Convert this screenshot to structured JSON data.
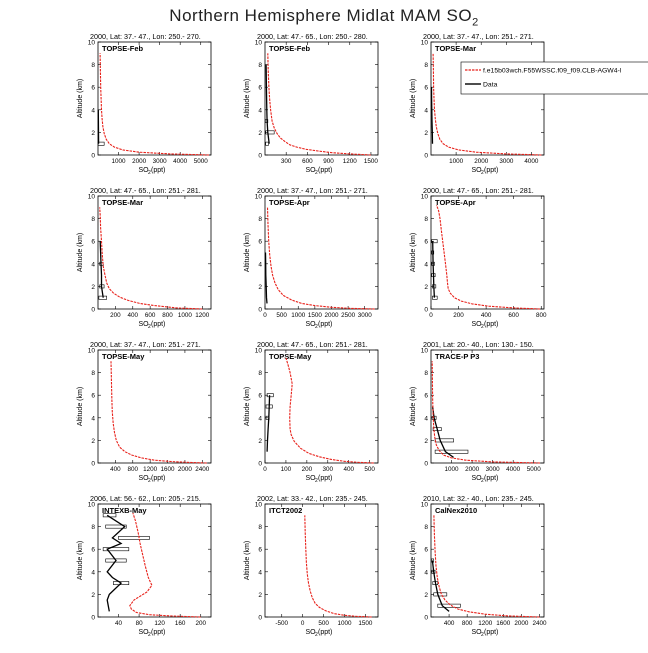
{
  "figure": {
    "title": "Northern Hemisphere Midlat MAM SO",
    "title_sub": "2",
    "ylabel": "Altitude (km)",
    "xlabel_main": "SO",
    "xlabel_sub": "2",
    "xlabel_unit": " (ppt)"
  },
  "legend": {
    "model_label": "f.e15b03wch.F55WSSC.f09_f09.CLB-AGW4-l",
    "obs_label": "Data",
    "model_color": "#e8221b",
    "obs_color": "#000000"
  },
  "chart_data": [
    {
      "type": "line",
      "header": "2000, Lat: 37.- 47., Lon: 250.- 270.",
      "campaign": "TOPSE-Feb",
      "xlim": [
        0,
        5500
      ],
      "ylim": [
        0,
        10
      ],
      "xticks": [
        1000,
        2000,
        3000,
        4000,
        5000
      ],
      "yticks": [
        0,
        2,
        4,
        6,
        8,
        10
      ],
      "model": {
        "x": [
          5400,
          3500,
          2000,
          1200,
          800,
          550,
          400,
          300,
          240,
          200,
          170,
          150,
          130,
          120,
          110,
          100
        ],
        "y": [
          0,
          0.1,
          0.25,
          0.45,
          0.7,
          1,
          1.4,
          1.9,
          2.5,
          3.2,
          4,
          5,
          6,
          7,
          8,
          9
        ]
      },
      "obs": {
        "x": [
          30,
          25,
          20,
          15
        ],
        "y": [
          1,
          2,
          3,
          4
        ]
      },
      "boxes": [
        {
          "y": 1,
          "lo": 10,
          "hi": 300
        }
      ]
    },
    {
      "type": "line",
      "header": "2000, Lat: 47.- 65., Lon: 250.- 280.",
      "campaign": "TOPSE-Feb",
      "xlim": [
        0,
        1600
      ],
      "ylim": [
        0,
        10
      ],
      "xticks": [
        300,
        600,
        900,
        1200,
        1500
      ],
      "yticks": [
        0,
        2,
        4,
        6,
        8,
        10
      ],
      "model": {
        "x": [
          1500,
          1200,
          950,
          750,
          580,
          450,
          350,
          280,
          220,
          170,
          130,
          100,
          80,
          65,
          55,
          45,
          40
        ],
        "y": [
          0,
          0.1,
          0.2,
          0.35,
          0.5,
          0.7,
          0.9,
          1.2,
          1.5,
          1.9,
          2.4,
          3,
          4,
          5,
          6,
          7.5,
          9
        ]
      },
      "obs": {
        "x": [
          60,
          40,
          30,
          25,
          20,
          15
        ],
        "y": [
          1,
          2,
          3,
          4,
          6,
          8
        ]
      },
      "boxes": [
        {
          "y": 1,
          "lo": 10,
          "hi": 50
        },
        {
          "y": 2,
          "lo": 10,
          "hi": 130
        },
        {
          "y": 3,
          "lo": 5,
          "hi": 40
        }
      ]
    },
    {
      "type": "line",
      "header": "2000, Lat: 37.- 47., Lon: 251.- 271.",
      "campaign": "TOPSE-Mar",
      "xlim": [
        0,
        4500
      ],
      "ylim": [
        0,
        10
      ],
      "xticks": [
        1000,
        2000,
        3000,
        4000
      ],
      "yticks": [
        0,
        2,
        4,
        6,
        8,
        10
      ],
      "model": {
        "x": [
          4400,
          3000,
          1800,
          1100,
          700,
          480,
          350,
          270,
          210,
          170,
          140,
          120,
          105,
          95,
          85
        ],
        "y": [
          0,
          0.1,
          0.25,
          0.45,
          0.7,
          1,
          1.4,
          1.9,
          2.5,
          3.2,
          4,
          5,
          6,
          7.5,
          9
        ]
      },
      "obs": {
        "x": [
          60,
          50,
          40,
          30,
          25,
          20
        ],
        "y": [
          1,
          2,
          3,
          4,
          5,
          6
        ]
      },
      "boxes": []
    },
    {
      "type": "line",
      "header": "2000, Lat: 47.- 65., Lon: 251.- 281.",
      "campaign": "TOPSE-Mar",
      "xlim": [
        0,
        1300
      ],
      "ylim": [
        0,
        10
      ],
      "xticks": [
        200,
        400,
        600,
        800,
        1000,
        1200
      ],
      "yticks": [
        0,
        2,
        4,
        6,
        8,
        10
      ],
      "model": {
        "x": [
          1200,
          900,
          650,
          480,
          350,
          250,
          180,
          130,
          100,
          80,
          60,
          50,
          40,
          30,
          25,
          20
        ],
        "y": [
          0,
          0.1,
          0.3,
          0.5,
          0.75,
          1.05,
          1.4,
          1.8,
          2.3,
          3,
          3.8,
          4.8,
          6,
          7.2,
          8.3,
          9
        ]
      },
      "obs": {
        "x": [
          60,
          40,
          40,
          35,
          30,
          25
        ],
        "y": [
          1,
          2,
          3,
          4,
          5,
          6
        ]
      },
      "boxes": [
        {
          "y": 1,
          "lo": 10,
          "hi": 100
        },
        {
          "y": 2,
          "lo": 20,
          "hi": 70
        },
        {
          "y": 4,
          "lo": 20,
          "hi": 60
        }
      ]
    },
    {
      "type": "line",
      "header": "2000, Lat: 37.- 47., Lon: 251.- 271.",
      "campaign": "TOPSE-Apr",
      "xlim": [
        0,
        3400
      ],
      "ylim": [
        0,
        10
      ],
      "xticks": [
        0,
        500,
        1000,
        1500,
        2000,
        2500,
        3000
      ],
      "yticks": [
        0,
        2,
        4,
        6,
        8,
        10
      ],
      "model": {
        "x": [
          3300,
          2600,
          2000,
          1500,
          1100,
          800,
          550,
          400,
          300,
          230,
          180,
          140,
          110,
          90,
          75
        ],
        "y": [
          0,
          0.05,
          0.15,
          0.3,
          0.5,
          0.8,
          1.2,
          1.7,
          2.3,
          3,
          3.8,
          4.8,
          6,
          7.5,
          9
        ]
      },
      "obs": {
        "x": [
          60,
          45,
          35,
          25,
          20,
          15
        ],
        "y": [
          0.5,
          1,
          2,
          3,
          4,
          5
        ]
      },
      "boxes": []
    },
    {
      "type": "line",
      "header": "2000, Lat: 47.- 65., Lon: 251.- 281.",
      "campaign": "TOPSE-Apr",
      "xlim": [
        0,
        820
      ],
      "ylim": [
        0,
        10
      ],
      "xticks": [
        0,
        200,
        400,
        600,
        800
      ],
      "yticks": [
        0,
        2,
        4,
        6,
        8,
        10
      ],
      "model": {
        "x": [
          790,
          600,
          420,
          300,
          220,
          170,
          140,
          125,
          120,
          115,
          105,
          95,
          85,
          75,
          65,
          55,
          40
        ],
        "y": [
          0,
          0.1,
          0.25,
          0.45,
          0.7,
          1,
          1.4,
          1.8,
          2.3,
          3,
          4,
          5,
          6,
          7,
          8,
          8.7,
          9.2
        ]
      },
      "obs": {
        "x": [
          25,
          20,
          18,
          15,
          12
        ],
        "y": [
          1,
          2,
          3,
          4,
          6
        ]
      },
      "boxes": [
        {
          "y": 1,
          "lo": 10,
          "hi": 45
        },
        {
          "y": 2,
          "lo": 10,
          "hi": 35
        },
        {
          "y": 3,
          "lo": 5,
          "hi": 30
        },
        {
          "y": 4,
          "lo": 5,
          "hi": 25
        },
        {
          "y": 5,
          "lo": 5,
          "hi": 20
        },
        {
          "y": 6,
          "lo": 5,
          "hi": 45
        }
      ]
    },
    {
      "type": "line",
      "header": "2000, Lat: 37.- 47., Lon: 251.- 271.",
      "campaign": "TOPSE-May",
      "xlim": [
        0,
        2600
      ],
      "ylim": [
        0,
        10
      ],
      "xticks": [
        400,
        800,
        1200,
        1600,
        2000,
        2400
      ],
      "yticks": [
        0,
        2,
        4,
        6,
        8,
        10
      ],
      "model": {
        "x": [
          2500,
          2100,
          1700,
          1300,
          1000,
          780,
          620,
          500,
          420,
          380,
          350,
          330,
          320,
          310,
          300
        ],
        "y": [
          0,
          0.05,
          0.12,
          0.25,
          0.45,
          0.7,
          1,
          1.4,
          2,
          2.7,
          3.5,
          4.5,
          5.5,
          7,
          9
        ]
      },
      "obs": {
        "x": [],
        "y": []
      },
      "boxes": []
    },
    {
      "type": "line",
      "header": "2000, Lat: 47.- 65., Lon: 251.- 281.",
      "campaign": "TOPSE-May",
      "xlim": [
        0,
        540
      ],
      "ylim": [
        0,
        10
      ],
      "xticks": [
        0,
        100,
        200,
        300,
        400,
        500
      ],
      "yticks": [
        0,
        2,
        4,
        6,
        8,
        10
      ],
      "model": {
        "x": [
          520,
          450,
          380,
          320,
          260,
          210,
          170,
          140,
          125,
          120,
          118,
          120,
          125,
          130,
          120,
          110,
          100
        ],
        "y": [
          0,
          0.05,
          0.15,
          0.3,
          0.55,
          0.85,
          1.3,
          1.9,
          2.5,
          3,
          4,
          5,
          6,
          7,
          8,
          8.7,
          9.3
        ]
      },
      "obs": {
        "x": [
          10,
          12,
          15,
          18,
          20,
          22
        ],
        "y": [
          1,
          2,
          3,
          4,
          5,
          6
        ]
      },
      "boxes": [
        {
          "y": 5,
          "lo": 5,
          "hi": 35
        },
        {
          "y": 6,
          "lo": 10,
          "hi": 40
        },
        {
          "y": 4,
          "lo": 5,
          "hi": 20
        }
      ]
    },
    {
      "type": "line",
      "header": "2001, Lat: 20.- 40., Lon: 130.- 150.",
      "campaign": "TRACE-P P3",
      "xlim": [
        0,
        5500
      ],
      "ylim": [
        0,
        10
      ],
      "xticks": [
        1000,
        2000,
        3000,
        4000,
        5000
      ],
      "yticks": [
        0,
        2,
        4,
        6,
        8,
        10
      ],
      "model": {
        "x": [
          5300,
          3000,
          1700,
          1000,
          620,
          400,
          260,
          180,
          130,
          100,
          80,
          70,
          60
        ],
        "y": [
          0,
          0.1,
          0.25,
          0.45,
          0.7,
          1.1,
          1.6,
          2.3,
          3.2,
          4.3,
          5.8,
          7.5,
          9
        ]
      },
      "obs": {
        "x": [
          1100,
          700,
          450,
          300,
          150,
          80
        ],
        "y": [
          0.5,
          1,
          2,
          3,
          4,
          5
        ]
      },
      "boxes": [
        {
          "y": 1,
          "lo": 200,
          "hi": 1800
        },
        {
          "y": 2,
          "lo": 200,
          "hi": 1100
        },
        {
          "y": 3,
          "lo": 100,
          "hi": 500
        },
        {
          "y": 4,
          "lo": 50,
          "hi": 250
        }
      ]
    },
    {
      "type": "line",
      "header": "2006, Lat: 56.- 62., Lon: 205.- 215.",
      "campaign": "INTEXB-May",
      "xlim": [
        0,
        220
      ],
      "ylim": [
        0,
        10
      ],
      "xticks": [
        40,
        80,
        120,
        160,
        200
      ],
      "yticks": [
        0,
        2,
        4,
        6,
        8,
        10
      ],
      "model": {
        "x": [
          200,
          140,
          100,
          75,
          65,
          62,
          70,
          95,
          105,
          98,
          92,
          87,
          82,
          78,
          73,
          68
        ],
        "y": [
          0,
          0.1,
          0.2,
          0.4,
          0.7,
          1,
          1.5,
          2.2,
          2.8,
          3.5,
          4.5,
          5.5,
          6.5,
          7.5,
          8.5,
          9.2
        ]
      },
      "obs": {
        "x": [
          22,
          18,
          22,
          45,
          28,
          18,
          35,
          18,
          45,
          28,
          52,
          18
        ],
        "y": [
          0.5,
          1.5,
          2,
          3,
          3.5,
          4,
          5,
          6,
          6.5,
          7,
          8,
          9
        ]
      },
      "boxes": [
        {
          "y": 3,
          "lo": 30,
          "hi": 60
        },
        {
          "y": 5,
          "lo": 15,
          "hi": 55
        },
        {
          "y": 6,
          "lo": 10,
          "hi": 60
        },
        {
          "y": 7,
          "lo": 40,
          "hi": 100
        },
        {
          "y": 8,
          "lo": 15,
          "hi": 55
        },
        {
          "y": 9,
          "lo": 10,
          "hi": 35
        }
      ]
    },
    {
      "type": "line",
      "header": "2002, Lat: 33.- 42., Lon: 235.- 245.",
      "campaign": "ITCT2002",
      "xlim": [
        -900,
        1800
      ],
      "ylim": [
        0,
        10
      ],
      "xticks": [
        -500,
        0,
        500,
        1000,
        1500
      ],
      "yticks": [
        0,
        2,
        4,
        6,
        8,
        10
      ],
      "model": {
        "x": [
          1650,
          1300,
          1000,
          750,
          550,
          400,
          300,
          230,
          180,
          140,
          110,
          90,
          75,
          60,
          50
        ],
        "y": [
          0,
          0.05,
          0.15,
          0.3,
          0.55,
          0.85,
          1.2,
          1.7,
          2.3,
          3,
          3.8,
          4.8,
          6,
          7.5,
          9
        ]
      },
      "obs": {
        "x": [],
        "y": []
      },
      "boxes": []
    },
    {
      "type": "line",
      "header": "2010, Lat: 32.- 40., Lon: 235.- 245.",
      "campaign": "CalNex2010",
      "xlim": [
        0,
        2500
      ],
      "ylim": [
        0,
        10
      ],
      "xticks": [
        400,
        800,
        1200,
        1600,
        2000,
        2400
      ],
      "yticks": [
        0,
        2,
        4,
        6,
        8,
        10
      ],
      "model": {
        "x": [
          2400,
          1700,
          1200,
          850,
          600,
          430,
          310,
          230,
          180,
          140,
          110,
          90,
          75,
          65
        ],
        "y": [
          0,
          0.1,
          0.25,
          0.45,
          0.7,
          1.05,
          1.5,
          2,
          2.7,
          3.5,
          4.5,
          5.8,
          7.3,
          9
        ]
      },
      "obs": {
        "x": [
          400,
          250,
          150,
          100,
          60,
          30
        ],
        "y": [
          0.5,
          1,
          2,
          3,
          4,
          5
        ]
      },
      "boxes": [
        {
          "y": 1,
          "lo": 150,
          "hi": 650
        },
        {
          "y": 2,
          "lo": 60,
          "hi": 350
        },
        {
          "y": 3,
          "lo": 40,
          "hi": 150
        },
        {
          "y": 4,
          "lo": 20,
          "hi": 90
        },
        {
          "y": 5,
          "lo": 10,
          "hi": 60
        }
      ]
    }
  ]
}
